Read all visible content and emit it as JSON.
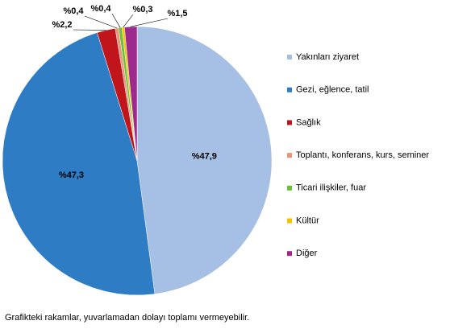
{
  "chart_data": {
    "type": "pie",
    "categories": [
      "Yakınları ziyaret",
      "Gezi, eğlence, tatil",
      "Sağlık",
      "Toplantı, konferans, kurs, seminer",
      "Ticari ilişkiler, fuar",
      "Kültür",
      "Diğer"
    ],
    "values": [
      47.9,
      47.3,
      2.2,
      0.4,
      0.4,
      0.3,
      1.5
    ],
    "value_labels": [
      "%47,9",
      "%47,3",
      "%2,2",
      "%0,4",
      "%0,4",
      "%0,3",
      "%1,5"
    ],
    "colors": [
      "#a6bfe4",
      "#2e7cc4",
      "#c0161b",
      "#e8967a",
      "#6cbf3c",
      "#f2c400",
      "#9c2a8c"
    ],
    "legend": "right",
    "note": "Grafikteki rakamlar, yuvarlamadan dolayı toplamı vermeyebilir."
  }
}
